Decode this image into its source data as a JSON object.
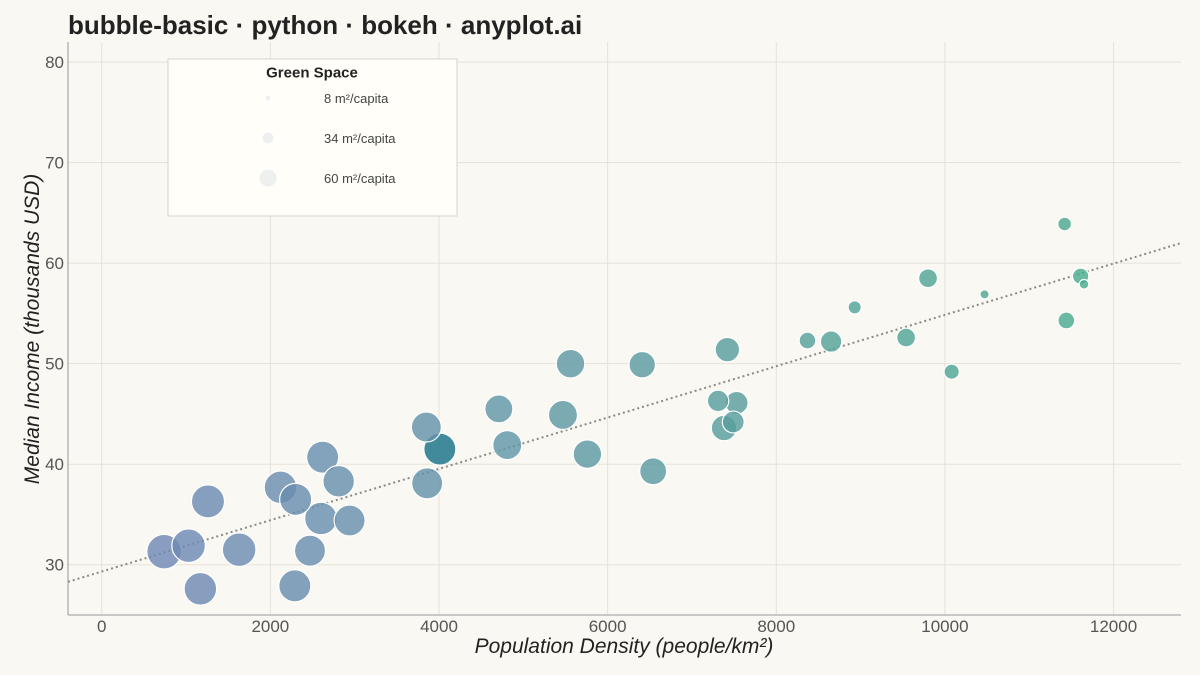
{
  "chart_data": {
    "type": "scatter",
    "title": "bubble-basic · python · bokeh · anyplot.ai",
    "xlabel": "Population Density (people/km²)",
    "ylabel": "Median Income (thousands USD)",
    "xlim": [
      -400,
      12800
    ],
    "ylim": [
      25,
      82
    ],
    "xticks": [
      "0",
      "2000",
      "4000",
      "6000",
      "8000",
      "10000",
      "12000"
    ],
    "yticks": [
      "30",
      "40",
      "50",
      "60",
      "70",
      "80"
    ],
    "grid": true,
    "size_encoding": "Green Space (m²/capita)",
    "legend": {
      "title": "Green Space",
      "placement": "top-left",
      "entries": [
        {
          "label": "8 m²/capita",
          "value": 8
        },
        {
          "label": "34 m²/capita",
          "value": 34
        },
        {
          "label": "60 m²/capita",
          "value": 60
        }
      ]
    },
    "trendline": {
      "style": "dotted",
      "x": [
        -400,
        12800
      ],
      "y": [
        28.3,
        62.0
      ]
    },
    "color_scale": {
      "low": "#7089b5",
      "high": "#4aab8f",
      "highlight": "#2c7d92"
    },
    "points": [
      {
        "x": 740,
        "y": 31.3,
        "size": 60
      },
      {
        "x": 1030,
        "y": 31.9,
        "size": 58
      },
      {
        "x": 1170,
        "y": 27.6,
        "size": 56
      },
      {
        "x": 1260,
        "y": 36.3,
        "size": 57
      },
      {
        "x": 1630,
        "y": 31.5,
        "size": 58
      },
      {
        "x": 2120,
        "y": 37.7,
        "size": 56
      },
      {
        "x": 2300,
        "y": 36.5,
        "size": 55
      },
      {
        "x": 2290,
        "y": 27.9,
        "size": 55
      },
      {
        "x": 2470,
        "y": 31.4,
        "size": 53
      },
      {
        "x": 2600,
        "y": 34.6,
        "size": 56
      },
      {
        "x": 2620,
        "y": 40.7,
        "size": 55
      },
      {
        "x": 2810,
        "y": 38.3,
        "size": 54
      },
      {
        "x": 2940,
        "y": 34.4,
        "size": 53
      },
      {
        "x": 3850,
        "y": 43.7,
        "size": 51
      },
      {
        "x": 3860,
        "y": 38.1,
        "size": 53
      },
      {
        "x": 4010,
        "y": 41.5,
        "size": 55,
        "highlight": true
      },
      {
        "x": 4710,
        "y": 45.5,
        "size": 47
      },
      {
        "x": 4810,
        "y": 41.9,
        "size": 49
      },
      {
        "x": 5470,
        "y": 44.9,
        "size": 49
      },
      {
        "x": 5560,
        "y": 50.0,
        "size": 48
      },
      {
        "x": 5760,
        "y": 41.0,
        "size": 48
      },
      {
        "x": 6410,
        "y": 49.9,
        "size": 44
      },
      {
        "x": 6540,
        "y": 39.3,
        "size": 45
      },
      {
        "x": 7310,
        "y": 46.3,
        "size": 34
      },
      {
        "x": 7380,
        "y": 43.6,
        "size": 42
      },
      {
        "x": 7420,
        "y": 51.4,
        "size": 40
      },
      {
        "x": 7490,
        "y": 44.2,
        "size": 35
      },
      {
        "x": 7530,
        "y": 46.1,
        "size": 37
      },
      {
        "x": 8370,
        "y": 52.3,
        "size": 25
      },
      {
        "x": 8650,
        "y": 52.2,
        "size": 34
      },
      {
        "x": 8930,
        "y": 55.6,
        "size": 18
      },
      {
        "x": 9540,
        "y": 52.6,
        "size": 29
      },
      {
        "x": 9800,
        "y": 58.5,
        "size": 29
      },
      {
        "x": 10080,
        "y": 49.2,
        "size": 22
      },
      {
        "x": 10470,
        "y": 56.9,
        "size": 10
      },
      {
        "x": 11420,
        "y": 63.9,
        "size": 19
      },
      {
        "x": 11440,
        "y": 54.3,
        "size": 25
      },
      {
        "x": 11610,
        "y": 58.7,
        "size": 24
      },
      {
        "x": 11650,
        "y": 57.9,
        "size": 11
      }
    ]
  }
}
